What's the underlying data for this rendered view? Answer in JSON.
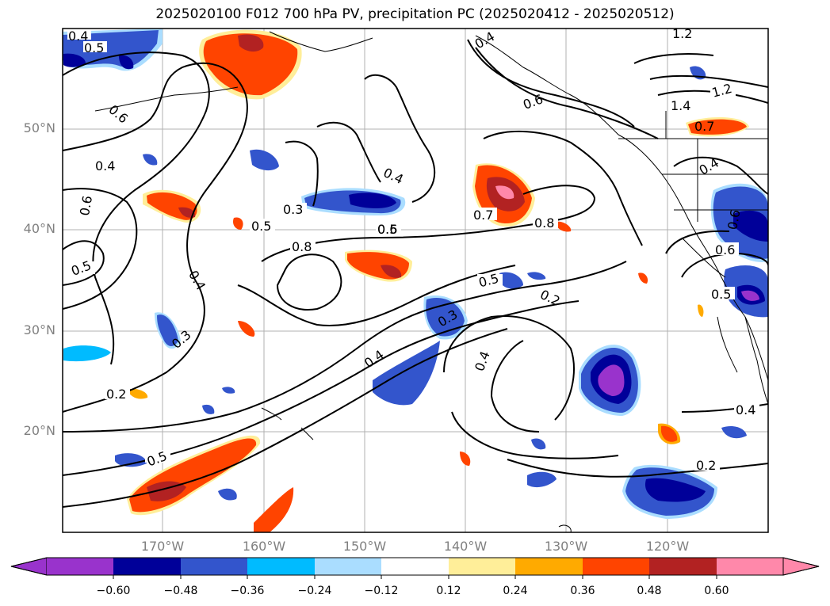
{
  "title": "2025020100 F012 700 hPa PV, precipitation PC (2025020412 - 2025020512)",
  "lat_labels": [
    "50°N",
    "40°N",
    "30°N",
    "20°N"
  ],
  "lon_labels": [
    "170°W",
    "160°W",
    "150°W",
    "140°W",
    "130°W",
    "120°W"
  ],
  "contour_labels": [
    "0.4",
    "0.5",
    "0.6",
    "0.4",
    "0.6",
    "0.5",
    "0.4",
    "0.3",
    "0.2",
    "0.5",
    "0.5",
    "0.3",
    "0.4",
    "0.5",
    "0.6",
    "0.8",
    "0.7",
    "0.8",
    "0.5",
    "0.3",
    "0.4",
    "0.4",
    "0.2",
    "1.2",
    "1.4",
    "1.2",
    "0.4",
    "0.6",
    "0.5",
    "0.4",
    "0.2",
    "0.6",
    "0.7",
    "0.6",
    "0.4"
  ],
  "colorbar": {
    "ticks": [
      "−0.60",
      "−0.48",
      "−0.36",
      "−0.24",
      "−0.12",
      "0.12",
      "0.24",
      "0.36",
      "0.48",
      "0.60"
    ],
    "colors": [
      "#9933cc",
      "#000099",
      "#3355cc",
      "#00bbff",
      "#aaddff",
      "#ffffff",
      "#ffee99",
      "#ffaa00",
      "#ff4400",
      "#b22222",
      "#ff88aa"
    ]
  },
  "colors": {
    "neg_strong": "#9933cc",
    "neg_dark": "#000099",
    "neg_mid": "#3355cc",
    "neg_light": "#00bbff",
    "neg_pale": "#aaddff",
    "pos_pale": "#ffee99",
    "pos_light": "#ffaa00",
    "pos_mid": "#ff4400",
    "pos_dark": "#b22222",
    "pos_strong": "#ff88aa"
  }
}
